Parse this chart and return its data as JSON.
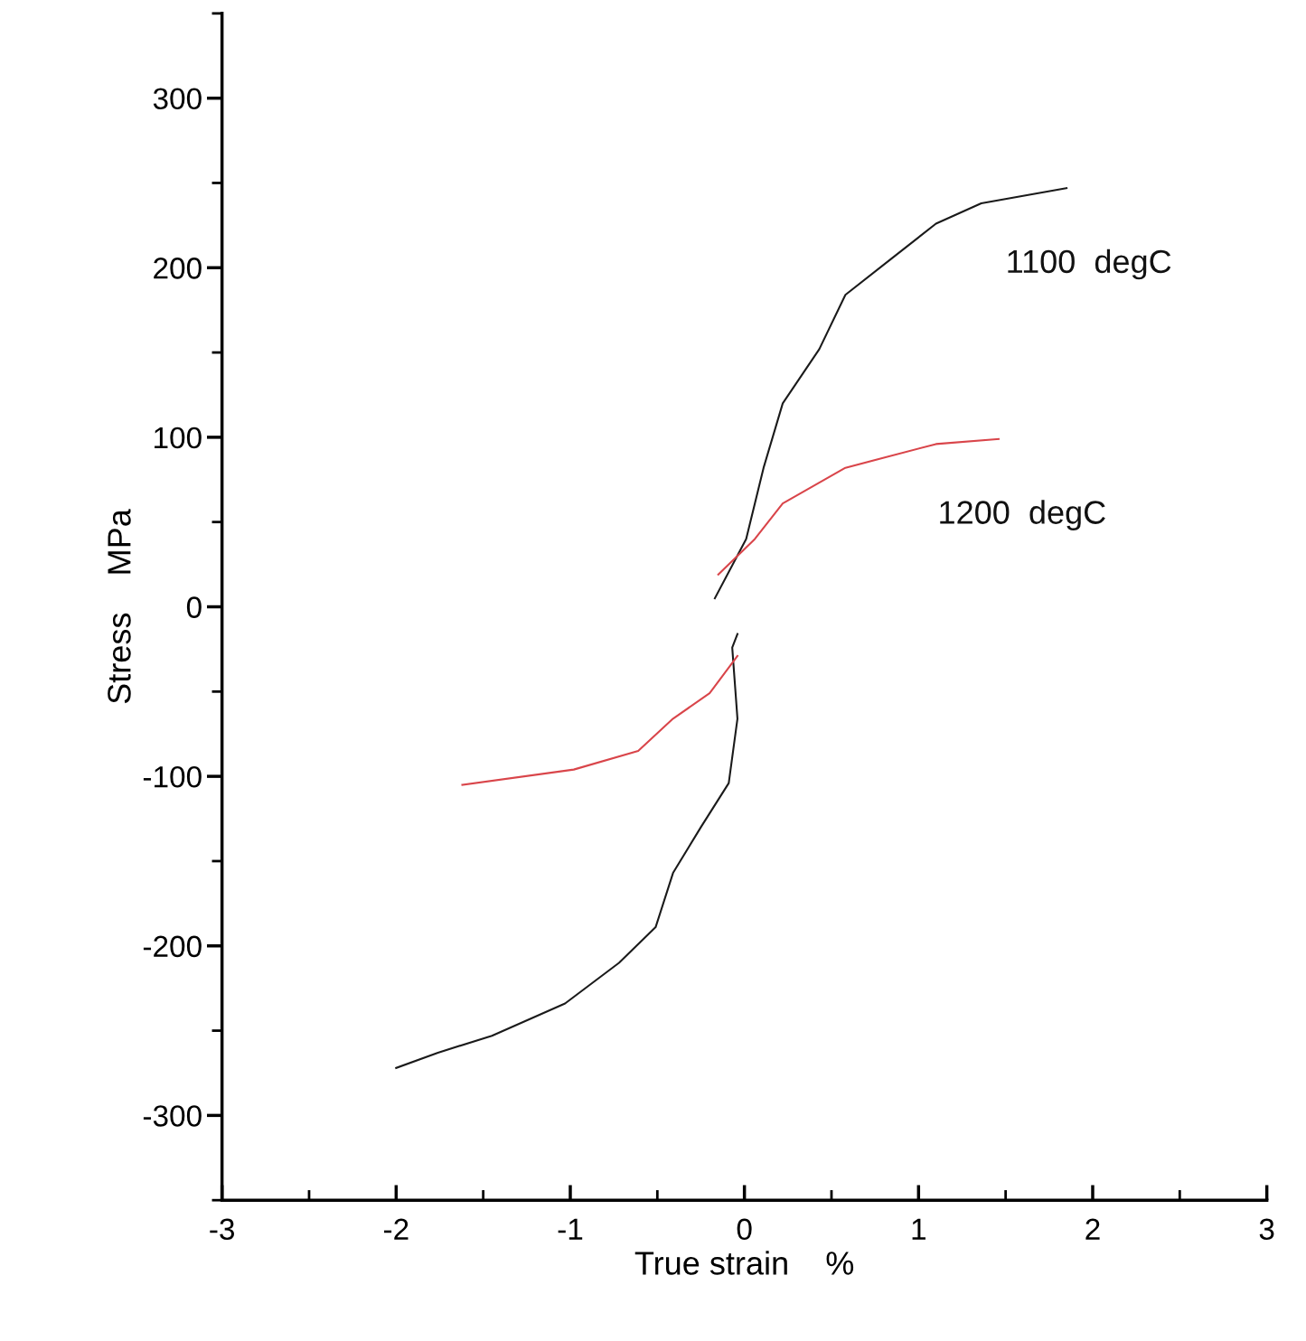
{
  "chart_data": {
    "type": "line",
    "xlabel": "True strain    %",
    "ylabel": "Stress    MPa",
    "xlim": [
      -3,
      3
    ],
    "ylim": [
      -350,
      350
    ],
    "xticks": [
      -3,
      -2,
      -1,
      0,
      1,
      2,
      3
    ],
    "yticks": [
      -300,
      -200,
      -100,
      0,
      100,
      200,
      300
    ],
    "grid": false,
    "legend": false,
    "marker": "none",
    "line_style": "solid",
    "series": [
      {
        "name": "1100  degC",
        "color": "#1a1a1a",
        "x": [
          -2.0,
          -1.76,
          -1.45,
          -1.03,
          -0.72,
          -0.51,
          -0.41,
          -0.25,
          -0.09,
          -0.04,
          -0.07,
          -0.04,
          null,
          -0.17,
          0.01,
          0.11,
          0.22,
          0.43,
          0.58,
          0.84,
          1.1,
          1.36,
          1.85
        ],
        "values": [
          -272,
          -263,
          -253,
          -234,
          -210,
          -189,
          -157,
          -130,
          -104,
          -66,
          -24,
          -16,
          null,
          5,
          40,
          82,
          120,
          152,
          184,
          205,
          226,
          238,
          247
        ]
      },
      {
        "name": "1200  degC",
        "color": "#d9454a",
        "x": [
          -1.62,
          -0.98,
          -0.61,
          -0.41,
          -0.2,
          -0.04,
          null,
          -0.15,
          0.06,
          0.22,
          0.58,
          1.1,
          1.46
        ],
        "values": [
          -105,
          -96,
          -85,
          -66,
          -51,
          -29,
          null,
          19,
          40,
          61,
          82,
          96,
          99
        ]
      }
    ]
  }
}
